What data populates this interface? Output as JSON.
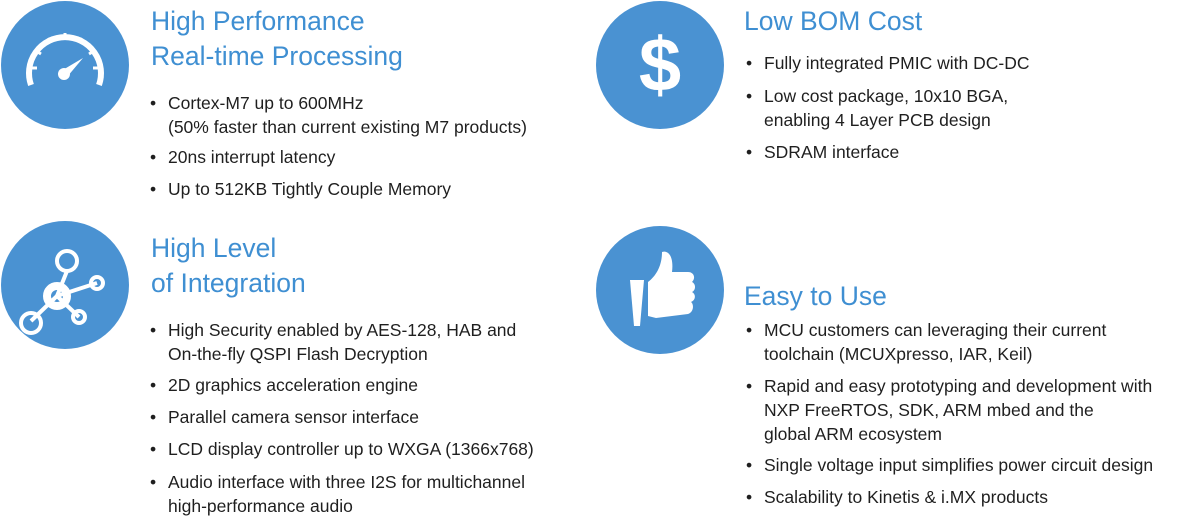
{
  "colors": {
    "accent": "#4a92d2",
    "heading": "#3f8fd2",
    "text": "#1f1f1f"
  },
  "sections": [
    {
      "icon": "speedometer-icon",
      "title": [
        "High Performance",
        "Real-time Processing"
      ],
      "bullets": [
        [
          "Cortex-M7 up to 600MHz",
          "(50% faster than current existing M7 products)"
        ],
        [
          "20ns interrupt latency"
        ],
        [
          "Up to 512KB Tightly Couple Memory"
        ]
      ]
    },
    {
      "icon": "dollar-icon",
      "title": [
        "Low BOM Cost"
      ],
      "bullets": [
        [
          "Fully integrated PMIC with DC-DC"
        ],
        [
          "Low cost package, 10x10 BGA,",
          "enabling 4 Layer PCB design"
        ],
        [
          "SDRAM interface"
        ]
      ]
    },
    {
      "icon": "network-nodes-icon",
      "title": [
        "High Level",
        "of Integration"
      ],
      "bullets": [
        [
          "High Security enabled by AES-128, HAB and",
          "On-the-fly QSPI Flash Decryption"
        ],
        [
          "2D graphics acceleration engine"
        ],
        [
          "Parallel camera sensor interface"
        ],
        [
          "LCD display controller up to WXGA (1366x768)"
        ],
        [
          "Audio interface with three I2S for multichannel",
          "high-performance audio"
        ]
      ]
    },
    {
      "icon": "thumbs-up-icon",
      "title": [
        "Easy to Use"
      ],
      "bullets": [
        [
          "MCU customers can leveraging their current",
          "toolchain (MCUXpresso, IAR, Keil)"
        ],
        [
          "Rapid and easy prototyping and development with",
          "NXP FreeRTOS, SDK, ARM mbed and the",
          "global ARM ecosystem"
        ],
        [
          "Single voltage input simplifies power circuit design"
        ],
        [
          "Scalability to Kinetis &  i.MX products"
        ]
      ]
    }
  ]
}
